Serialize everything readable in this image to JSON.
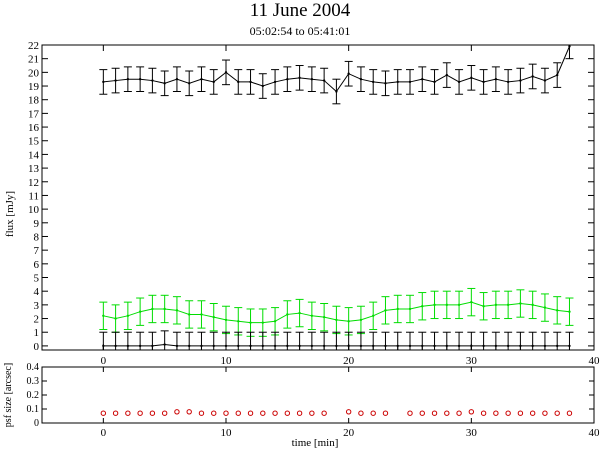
{
  "title": "11 June 2004",
  "subtitle": "05:02:54 to 05:41:01",
  "colors": {
    "upper_series": "#000000",
    "middle_series": "#00dd00",
    "lower_series": "#000000",
    "psf_points": "#cc0000"
  },
  "chart_data": [
    {
      "type": "line",
      "ylabel": "flux [mJy]",
      "xlabel": "",
      "xlim": [
        -5,
        40
      ],
      "ylim": [
        -0.3,
        22
      ],
      "x_ticks": [
        "0",
        "10",
        "20",
        "30",
        "40"
      ],
      "y_ticks": [
        "0",
        "1",
        "2",
        "3",
        "4",
        "5",
        "6",
        "7",
        "8",
        "9",
        "10",
        "11",
        "12",
        "13",
        "14",
        "15",
        "16",
        "17",
        "18",
        "19",
        "20",
        "21",
        "22"
      ],
      "grid": false,
      "series": [
        {
          "x": [
            0,
            1,
            2,
            3,
            4,
            5,
            6,
            7,
            8,
            9,
            10,
            11,
            12,
            13,
            14,
            15,
            16,
            17,
            18,
            19,
            20,
            21,
            22,
            23,
            24,
            25,
            26,
            27,
            28,
            29,
            30,
            31,
            32,
            33,
            34,
            35,
            36,
            37,
            38
          ],
          "values": [
            19.3,
            19.4,
            19.5,
            19.5,
            19.4,
            19.2,
            19.5,
            19.2,
            19.5,
            19.3,
            20.0,
            19.3,
            19.3,
            19.0,
            19.3,
            19.5,
            19.6,
            19.5,
            19.4,
            18.6,
            19.9,
            19.5,
            19.3,
            19.2,
            19.3,
            19.3,
            19.5,
            19.3,
            19.8,
            19.3,
            19.6,
            19.3,
            19.5,
            19.3,
            19.4,
            19.7,
            19.4,
            19.8,
            21.9
          ],
          "error": 0.9
        },
        {
          "x": [
            0,
            1,
            2,
            3,
            4,
            5,
            6,
            7,
            8,
            9,
            10,
            11,
            12,
            13,
            14,
            15,
            16,
            17,
            18,
            19,
            20,
            21,
            22,
            23,
            24,
            25,
            26,
            27,
            28,
            29,
            30,
            31,
            32,
            33,
            34,
            35,
            36,
            37,
            38
          ],
          "values": [
            2.2,
            2.0,
            2.2,
            2.5,
            2.7,
            2.7,
            2.6,
            2.3,
            2.3,
            2.1,
            1.9,
            1.8,
            1.7,
            1.7,
            1.8,
            2.3,
            2.4,
            2.2,
            2.1,
            1.9,
            1.8,
            1.9,
            2.2,
            2.6,
            2.7,
            2.7,
            2.9,
            3.0,
            3.0,
            3.0,
            3.2,
            2.9,
            3.0,
            3.0,
            3.1,
            3.0,
            2.8,
            2.6,
            2.5
          ],
          "error": 1.0
        },
        {
          "x": [
            0,
            1,
            2,
            3,
            4,
            5,
            6,
            7,
            8,
            9,
            10,
            11,
            12,
            13,
            14,
            15,
            16,
            17,
            18,
            19,
            20,
            21,
            22,
            23,
            24,
            25,
            26,
            27,
            28,
            29,
            30,
            31,
            32,
            33,
            34,
            35,
            36,
            37,
            38
          ],
          "values": [
            0.0,
            0.0,
            0.0,
            0.0,
            0.0,
            0.1,
            0.0,
            0.0,
            0.0,
            0.0,
            0.0,
            0.0,
            0.0,
            0.0,
            0.0,
            0.0,
            0.0,
            0.0,
            0.0,
            0.0,
            0.0,
            0.0,
            0.0,
            0.0,
            0.0,
            0.0,
            0.0,
            0.0,
            0.0,
            0.0,
            0.0,
            0.0,
            0.0,
            0.0,
            0.0,
            0.0,
            0.0,
            0.0,
            0.0
          ],
          "error": 1.0
        }
      ]
    },
    {
      "type": "scatter",
      "ylabel": "psf size [arcsec]",
      "xlabel": "time [min]",
      "xlim": [
        -5,
        40
      ],
      "ylim": [
        0,
        0.4
      ],
      "x_ticks": [
        "0",
        "10",
        "20",
        "30",
        "40"
      ],
      "y_ticks": [
        "0",
        "0.1",
        "0.2",
        "0.3",
        "0.4"
      ],
      "series": [
        {
          "x": [
            0,
            1,
            2,
            3,
            4,
            5,
            6,
            7,
            8,
            9,
            10,
            11,
            12,
            13,
            14,
            15,
            16,
            17,
            18,
            20,
            21,
            22,
            23,
            25,
            26,
            27,
            28,
            29,
            30,
            31,
            32,
            33,
            34,
            35,
            36,
            37,
            38
          ],
          "values": [
            0.07,
            0.07,
            0.07,
            0.07,
            0.07,
            0.07,
            0.08,
            0.08,
            0.07,
            0.07,
            0.07,
            0.07,
            0.07,
            0.07,
            0.07,
            0.07,
            0.07,
            0.07,
            0.07,
            0.08,
            0.07,
            0.07,
            0.07,
            0.07,
            0.07,
            0.07,
            0.07,
            0.07,
            0.08,
            0.07,
            0.07,
            0.07,
            0.07,
            0.07,
            0.07,
            0.07,
            0.07
          ]
        }
      ]
    }
  ]
}
